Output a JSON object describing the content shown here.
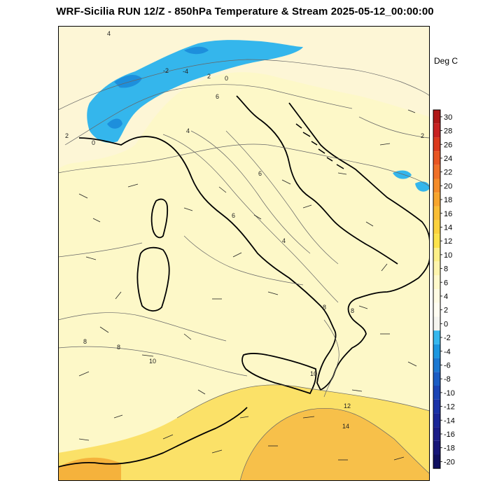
{
  "title": "WRF-Sicilia RUN 12/Z - 850hPa Temperature & Stream 2025-05-12_00:00:00",
  "units": "Deg C",
  "colorbar": {
    "labels": [
      "30",
      "28",
      "26",
      "24",
      "22",
      "20",
      "18",
      "16",
      "14",
      "12",
      "10",
      "8",
      "6",
      "4",
      "2",
      "0",
      "-2",
      "-4",
      "-6",
      "-8",
      "-10",
      "-12",
      "-14",
      "-16",
      "-18",
      "-20"
    ],
    "colors": [
      "#b01818",
      "#c82222",
      "#dc3a1e",
      "#e85522",
      "#f07028",
      "#f48c2a",
      "#f7a52e",
      "#f9bd36",
      "#fbd23e",
      "#fce34c",
      "#fdf08a",
      "#fef5ae",
      "#fff9cc",
      "#fffbe4",
      "#fffdf2",
      "#f5f5f0",
      "#36b8ee",
      "#1c97e0",
      "#1a78d2",
      "#1a5cc4",
      "#1a44b6",
      "#1a32a8",
      "#1a2698",
      "#1a1c88",
      "#161678",
      "#101060"
    ]
  },
  "map": {
    "contour_labels": [
      "4",
      "-2",
      "-4",
      "2",
      "0",
      "6",
      "2",
      "0",
      "4",
      "6",
      "6",
      "4",
      "2",
      "8",
      "8",
      "8",
      "8",
      "10",
      "10",
      "12",
      "14"
    ]
  }
}
